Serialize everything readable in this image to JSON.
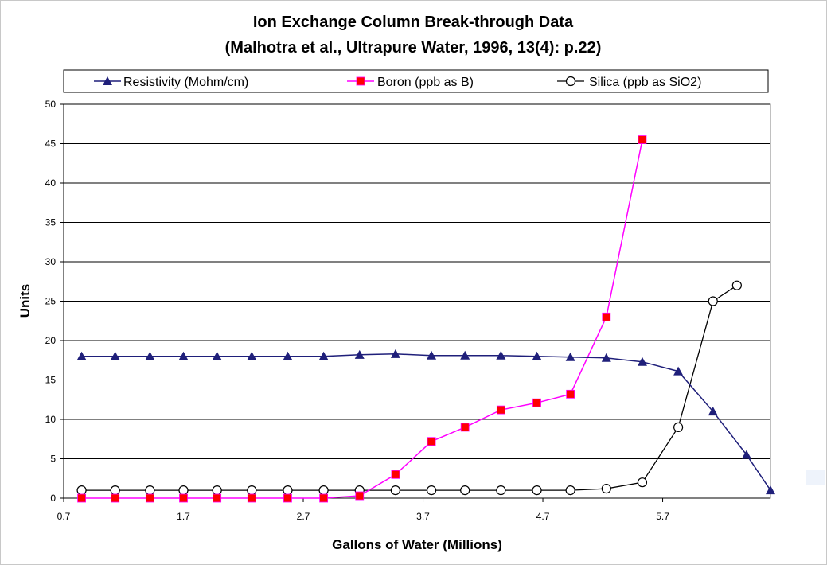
{
  "chart_data": {
    "type": "line",
    "title": "Ion Exchange Column Break-through Data",
    "subtitle": "(Malhotra et al., Ultrapure Water, 1996, 13(4): p.22)",
    "xlabel": "Gallons of Water (Millions)",
    "ylabel": "Units",
    "xlim": [
      0.7,
      6.6
    ],
    "ylim": [
      0,
      50
    ],
    "xticks": [
      0.7,
      1.7,
      2.7,
      3.7,
      4.7,
      5.7
    ],
    "xtick_labels": [
      "0.7",
      "1.7",
      "2.7",
      "3.7",
      "4.7",
      "5.7"
    ],
    "yticks": [
      0,
      5,
      10,
      15,
      20,
      25,
      30,
      35,
      40,
      45,
      50
    ],
    "ytick_labels": [
      "0",
      "5",
      "10",
      "15",
      "20",
      "25",
      "30",
      "35",
      "40",
      "45",
      "50"
    ],
    "grid": "horizontal",
    "legend_position": "top",
    "series": [
      {
        "name": "Resistivity (Mohm/cm)",
        "color": "#1f1f7a",
        "marker": "triangle",
        "x": [
          0.85,
          1.13,
          1.42,
          1.7,
          1.98,
          2.27,
          2.57,
          2.87,
          3.17,
          3.47,
          3.77,
          4.05,
          4.35,
          4.65,
          4.93,
          5.23,
          5.53,
          5.83,
          6.12,
          6.4,
          6.6
        ],
        "y": [
          18,
          18,
          18,
          18,
          18,
          18,
          18,
          18,
          18.2,
          18.3,
          18.1,
          18.1,
          18.1,
          18,
          17.9,
          17.8,
          17.3,
          16.1,
          11,
          5.5,
          1
        ]
      },
      {
        "name": "Boron (ppb as B)",
        "color": "#ff00ff",
        "marker": "square",
        "marker_color": "#ff0000",
        "x": [
          0.85,
          1.13,
          1.42,
          1.7,
          1.98,
          2.27,
          2.57,
          2.87,
          3.17,
          3.47,
          3.77,
          4.05,
          4.35,
          4.65,
          4.93,
          5.23,
          5.53
        ],
        "y": [
          0,
          0,
          0,
          0,
          0,
          0,
          0,
          0,
          0.3,
          3,
          7.2,
          9,
          11.2,
          12.1,
          13.2,
          23,
          45.5
        ]
      },
      {
        "name": "Silica (ppb as SiO2)",
        "color": "#000000",
        "marker": "circle-open",
        "x": [
          0.85,
          1.13,
          1.42,
          1.7,
          1.98,
          2.27,
          2.57,
          2.87,
          3.17,
          3.47,
          3.77,
          4.05,
          4.35,
          4.65,
          4.93,
          5.23,
          5.53,
          5.83,
          6.12,
          6.32
        ],
        "y": [
          1,
          1,
          1,
          1,
          1,
          1,
          1,
          1,
          1,
          1,
          1,
          1,
          1,
          1,
          1,
          1.2,
          2,
          9,
          25,
          27
        ]
      }
    ]
  }
}
